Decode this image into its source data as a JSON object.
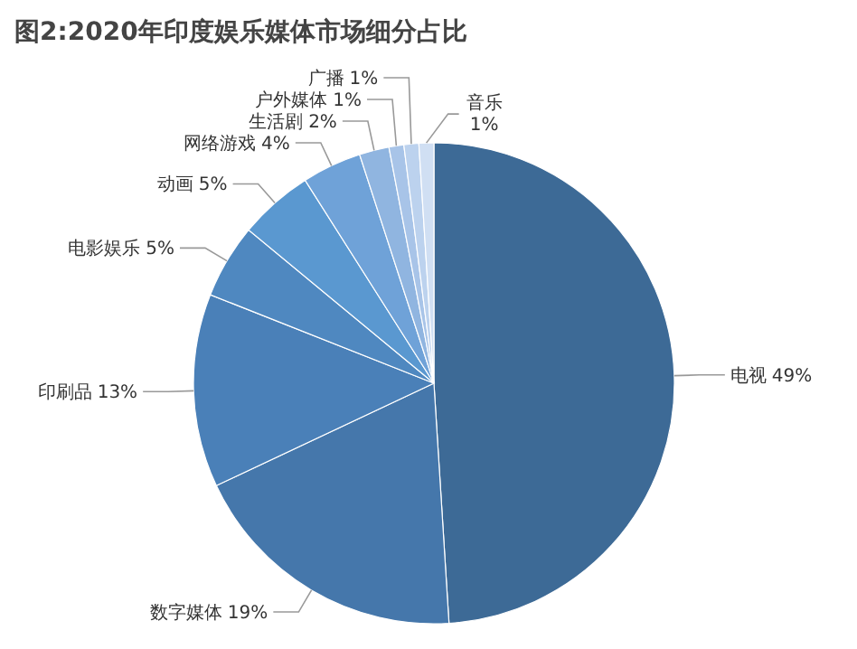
{
  "chart_data": {
    "type": "pie",
    "title": "图2:2020年印度娱乐媒体市场细分占比",
    "categories": [
      "电视",
      "数字媒体",
      "印刷品",
      "电影娱乐",
      "动画",
      "网络游戏",
      "生活剧",
      "户外媒体",
      "广播",
      "音乐"
    ],
    "values": [
      49,
      19,
      13,
      5,
      5,
      4,
      2,
      1,
      1,
      1
    ],
    "colors": [
      "#3d6a96",
      "#4577ab",
      "#4a80b8",
      "#4f88c0",
      "#5a98d0",
      "#6fa2d8",
      "#90b5e0",
      "#a8c4e8",
      "#bcd2ee",
      "#d0dff3"
    ],
    "value_labels": [
      "49%",
      "19%",
      "13%",
      "5%",
      "5%",
      "4%",
      "2%",
      "1%",
      "1%",
      "1%"
    ]
  }
}
